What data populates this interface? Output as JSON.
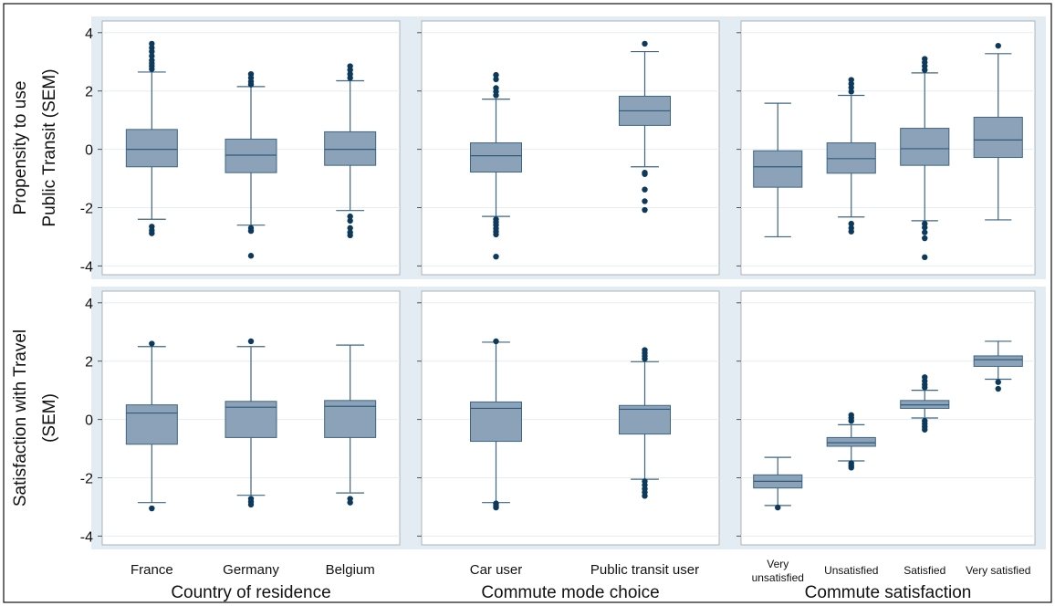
{
  "colors": {
    "box_fill": "#8CA2B8",
    "box_stroke": "#3E6580",
    "median": "#2F5C7A",
    "outlier": "#0D3A5C",
    "panel_bg": "#E3ECF2",
    "plot_bg": "#FFFFFF",
    "grid": "#E6EDF2",
    "frame": "#111111"
  },
  "chart_data": {
    "type": "boxplot",
    "ylim": [
      -4.3,
      4.4
    ],
    "yticks": [
      4,
      2,
      0,
      -2,
      -4
    ],
    "tick_labels": [
      "4",
      "2",
      "0",
      "-2",
      "-4"
    ],
    "rows": [
      {
        "ylabel": [
          "Propensity to use",
          "Public Transit (SEM)"
        ]
      },
      {
        "ylabel": [
          "Satisfaction with Travel",
          "(SEM)"
        ]
      }
    ],
    "columns": [
      {
        "xlabel": "Country of residence",
        "small": false,
        "categories": [
          [
            "France"
          ],
          [
            "Germany"
          ],
          [
            "Belgium"
          ]
        ]
      },
      {
        "xlabel": "Commute mode choice",
        "small": false,
        "categories": [
          [
            "Car user"
          ],
          [
            "Public transit user"
          ]
        ]
      },
      {
        "xlabel": "Commute satisfaction",
        "small": true,
        "categories": [
          [
            "Very",
            "unsatisfied"
          ],
          [
            "Unsatisfied"
          ],
          [
            "Satisfied"
          ],
          [
            "Very satisfied"
          ]
        ]
      }
    ],
    "panels": [
      {
        "row": 0,
        "col": 0,
        "boxes": [
          {
            "whisker_low": -2.4,
            "q1": -0.6,
            "median": 0.0,
            "q3": 0.68,
            "whisker_high": 2.65,
            "outliers": [
              2.75,
              2.85,
              2.95,
              3.05,
              3.2,
              3.35,
              3.48,
              3.62,
              -2.65,
              -2.78,
              -2.88
            ]
          },
          {
            "whisker_low": -2.6,
            "q1": -0.8,
            "median": -0.2,
            "q3": 0.35,
            "whisker_high": 2.15,
            "outliers": [
              2.22,
              2.32,
              2.45,
              2.58,
              -2.7,
              -2.8,
              -3.65
            ]
          },
          {
            "whisker_low": -2.1,
            "q1": -0.55,
            "median": 0.0,
            "q3": 0.6,
            "whisker_high": 2.35,
            "outliers": [
              2.45,
              2.58,
              2.72,
              2.85,
              -2.3,
              -2.45,
              -2.7,
              -2.85,
              -2.95
            ]
          }
        ]
      },
      {
        "row": 0,
        "col": 1,
        "boxes": [
          {
            "whisker_low": -2.3,
            "q1": -0.78,
            "median": -0.22,
            "q3": 0.22,
            "whisker_high": 1.72,
            "outliers": [
              1.85,
              1.98,
              2.1,
              2.4,
              2.55,
              -2.4,
              -2.5,
              -2.6,
              -2.72,
              -2.82,
              -2.92,
              -3.68
            ]
          },
          {
            "whisker_low": -0.6,
            "q1": 0.82,
            "median": 1.32,
            "q3": 1.82,
            "whisker_high": 3.35,
            "outliers": [
              3.62,
              -0.8,
              -0.85,
              -1.38,
              -1.78,
              -2.08
            ]
          }
        ]
      },
      {
        "row": 0,
        "col": 2,
        "boxes": [
          {
            "whisker_low": -3.0,
            "q1": -1.3,
            "median": -0.6,
            "q3": -0.05,
            "whisker_high": 1.58,
            "outliers": []
          },
          {
            "whisker_low": -2.32,
            "q1": -0.82,
            "median": -0.32,
            "q3": 0.22,
            "whisker_high": 1.85,
            "outliers": [
              1.98,
              2.12,
              2.25,
              2.38,
              -2.55,
              -2.7,
              -2.82
            ]
          },
          {
            "whisker_low": -2.45,
            "q1": -0.55,
            "median": 0.02,
            "q3": 0.72,
            "whisker_high": 2.62,
            "outliers": [
              2.72,
              2.85,
              2.98,
              3.1,
              -2.55,
              -2.68,
              -2.85,
              -3.05,
              -3.7
            ]
          },
          {
            "whisker_low": -2.42,
            "q1": -0.28,
            "median": 0.32,
            "q3": 1.1,
            "whisker_high": 3.28,
            "outliers": [
              3.55
            ]
          }
        ]
      },
      {
        "row": 1,
        "col": 0,
        "boxes": [
          {
            "whisker_low": -2.85,
            "q1": -0.85,
            "median": 0.22,
            "q3": 0.5,
            "whisker_high": 2.5,
            "outliers": [
              2.6,
              -3.05
            ]
          },
          {
            "whisker_low": -2.6,
            "q1": -0.62,
            "median": 0.42,
            "q3": 0.62,
            "whisker_high": 2.5,
            "outliers": [
              2.68,
              -2.72,
              -2.82,
              -2.92
            ]
          },
          {
            "whisker_low": -2.52,
            "q1": -0.62,
            "median": 0.45,
            "q3": 0.65,
            "whisker_high": 2.55,
            "outliers": [
              -2.72,
              -2.85
            ]
          }
        ]
      },
      {
        "row": 1,
        "col": 1,
        "boxes": [
          {
            "whisker_low": -2.85,
            "q1": -0.75,
            "median": 0.38,
            "q3": 0.6,
            "whisker_high": 2.65,
            "outliers": [
              2.68,
              -2.88,
              -2.95,
              -3.02
            ]
          },
          {
            "whisker_low": -2.05,
            "q1": -0.5,
            "median": 0.35,
            "q3": 0.48,
            "whisker_high": 1.98,
            "outliers": [
              2.08,
              2.18,
              2.28,
              2.38,
              -2.12,
              -2.25,
              -2.38,
              -2.5,
              -2.62
            ]
          }
        ]
      },
      {
        "row": 1,
        "col": 2,
        "boxes": [
          {
            "whisker_low": -2.95,
            "q1": -2.35,
            "median": -2.12,
            "q3": -1.9,
            "whisker_high": -1.3,
            "outliers": [
              -3.02
            ]
          },
          {
            "whisker_low": -1.42,
            "q1": -0.92,
            "median": -0.8,
            "q3": -0.62,
            "whisker_high": -0.18,
            "outliers": [
              -0.05,
              0.05,
              0.15,
              -1.5,
              -1.58,
              -1.65
            ]
          },
          {
            "whisker_low": 0.05,
            "q1": 0.38,
            "median": 0.5,
            "q3": 0.65,
            "whisker_high": 1.0,
            "outliers": [
              1.1,
              1.2,
              1.32,
              1.45,
              -0.05,
              -0.15,
              -0.25,
              -0.35
            ]
          },
          {
            "whisker_low": 1.38,
            "q1": 1.82,
            "median": 2.05,
            "q3": 2.18,
            "whisker_high": 2.68,
            "outliers": [
              1.28,
              1.05
            ]
          }
        ]
      }
    ]
  }
}
